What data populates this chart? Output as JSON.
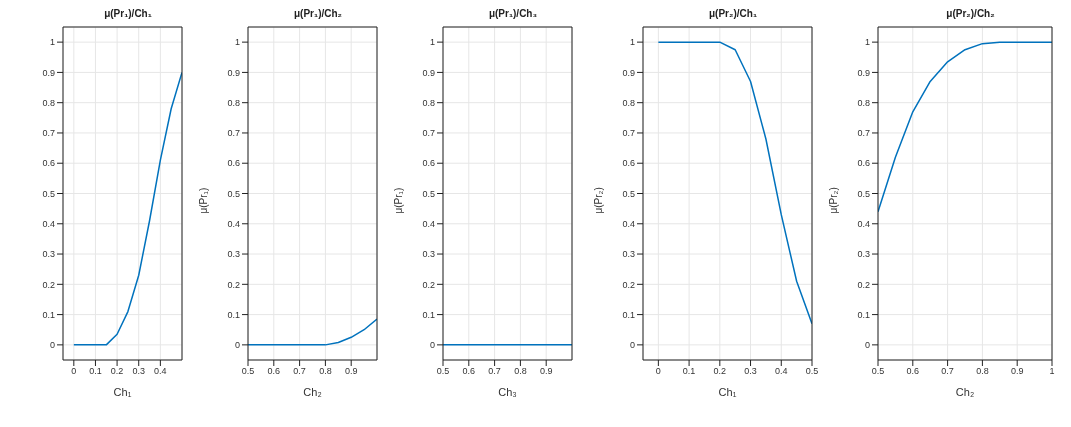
{
  "chart_data": [
    {
      "type": "line",
      "title": "μ(Pr₁)/Ch₁",
      "xlabel": "Ch₁",
      "x": [
        0,
        0.05,
        0.1,
        0.15,
        0.2,
        0.25,
        0.3,
        0.35,
        0.4,
        0.45,
        0.5
      ],
      "series": [
        {
          "color": "#0072bd",
          "values": [
            0,
            0,
            0,
            0,
            0.035,
            0.11,
            0.23,
            0.41,
            0.61,
            0.78,
            0.9
          ]
        }
      ],
      "xlim": [
        -0.05,
        0.5
      ],
      "xticks": [
        0,
        0.1,
        0.2,
        0.3,
        0.4
      ],
      "ylim": [
        -0.05,
        1.05
      ],
      "yticks": [
        0,
        0.1,
        0.2,
        0.3,
        0.4,
        0.5,
        0.6,
        0.7,
        0.8,
        0.9,
        1
      ],
      "grid": true,
      "legend": false,
      "marker": "none",
      "line_style": "solid"
    },
    {
      "type": "line",
      "title": "μ(Pr₁)/Ch₂",
      "xlabel": "Ch₂",
      "ylabel": "μ(Pr₁)",
      "x": [
        0.5,
        0.55,
        0.6,
        0.65,
        0.7,
        0.75,
        0.8,
        0.85,
        0.9,
        0.95,
        1
      ],
      "series": [
        {
          "color": "#0072bd",
          "values": [
            0,
            0,
            0,
            0,
            0,
            0,
            0,
            0.008,
            0.025,
            0.05,
            0.085
          ]
        }
      ],
      "xlim": [
        0.5,
        1
      ],
      "xticks": [
        0.5,
        0.6,
        0.7,
        0.8,
        0.9
      ],
      "ylim": [
        -0.05,
        1.05
      ],
      "yticks": [
        0,
        0.1,
        0.2,
        0.3,
        0.4,
        0.5,
        0.6,
        0.7,
        0.8,
        0.9,
        1
      ],
      "grid": true,
      "legend": false,
      "marker": "none",
      "line_style": "solid"
    },
    {
      "type": "line",
      "title": "μ(Pr₁)/Ch₃",
      "xlabel": "Ch₃",
      "ylabel": "μ(Pr₁)",
      "x": [
        0.5,
        0.55,
        0.6,
        0.65,
        0.7,
        0.75,
        0.8,
        0.85,
        0.9,
        0.95,
        1
      ],
      "series": [
        {
          "color": "#0072bd",
          "values": [
            0,
            0,
            0,
            0,
            0,
            0,
            0,
            0,
            0,
            0,
            0
          ]
        }
      ],
      "xlim": [
        0.5,
        1
      ],
      "xticks": [
        0.5,
        0.6,
        0.7,
        0.8,
        0.9
      ],
      "ylim": [
        -0.05,
        1.05
      ],
      "yticks": [
        0,
        0.1,
        0.2,
        0.3,
        0.4,
        0.5,
        0.6,
        0.7,
        0.8,
        0.9,
        1
      ],
      "grid": true,
      "legend": false,
      "marker": "none",
      "line_style": "solid"
    },
    {
      "type": "line",
      "title": "μ(Pr₂)/Ch₁",
      "xlabel": "Ch₁",
      "ylabel": "μ(Pr₂)",
      "x": [
        0,
        0.05,
        0.1,
        0.15,
        0.2,
        0.25,
        0.3,
        0.35,
        0.4,
        0.45,
        0.5
      ],
      "series": [
        {
          "color": "#0072bd",
          "values": [
            1,
            1,
            1,
            1,
            1,
            0.975,
            0.87,
            0.68,
            0.43,
            0.21,
            0.07
          ]
        }
      ],
      "xlim": [
        -0.05,
        0.5
      ],
      "xticks": [
        0,
        0.1,
        0.2,
        0.3,
        0.4,
        0.5
      ],
      "ylim": [
        -0.05,
        1.05
      ],
      "yticks": [
        0,
        0.1,
        0.2,
        0.3,
        0.4,
        0.5,
        0.6,
        0.7,
        0.8,
        0.9,
        1
      ],
      "grid": true,
      "legend": false,
      "marker": "none",
      "line_style": "solid"
    },
    {
      "type": "line",
      "title": "μ(Pr₂)/Ch₂",
      "xlabel": "Ch₂",
      "ylabel": "μ(Pr₂)",
      "x": [
        0.5,
        0.55,
        0.6,
        0.65,
        0.7,
        0.75,
        0.8,
        0.85,
        0.9,
        0.95,
        1
      ],
      "series": [
        {
          "color": "#0072bd",
          "values": [
            0.44,
            0.62,
            0.77,
            0.87,
            0.935,
            0.975,
            0.995,
            1,
            1,
            1,
            1
          ]
        }
      ],
      "xlim": [
        0.5,
        1
      ],
      "xticks": [
        0.5,
        0.6,
        0.7,
        0.8,
        0.9,
        1
      ],
      "ylim": [
        -0.05,
        1.05
      ],
      "yticks": [
        0,
        0.1,
        0.2,
        0.3,
        0.4,
        0.5,
        0.6,
        0.7,
        0.8,
        0.9,
        1
      ],
      "grid": true,
      "legend": false,
      "marker": "none",
      "line_style": "solid"
    }
  ]
}
